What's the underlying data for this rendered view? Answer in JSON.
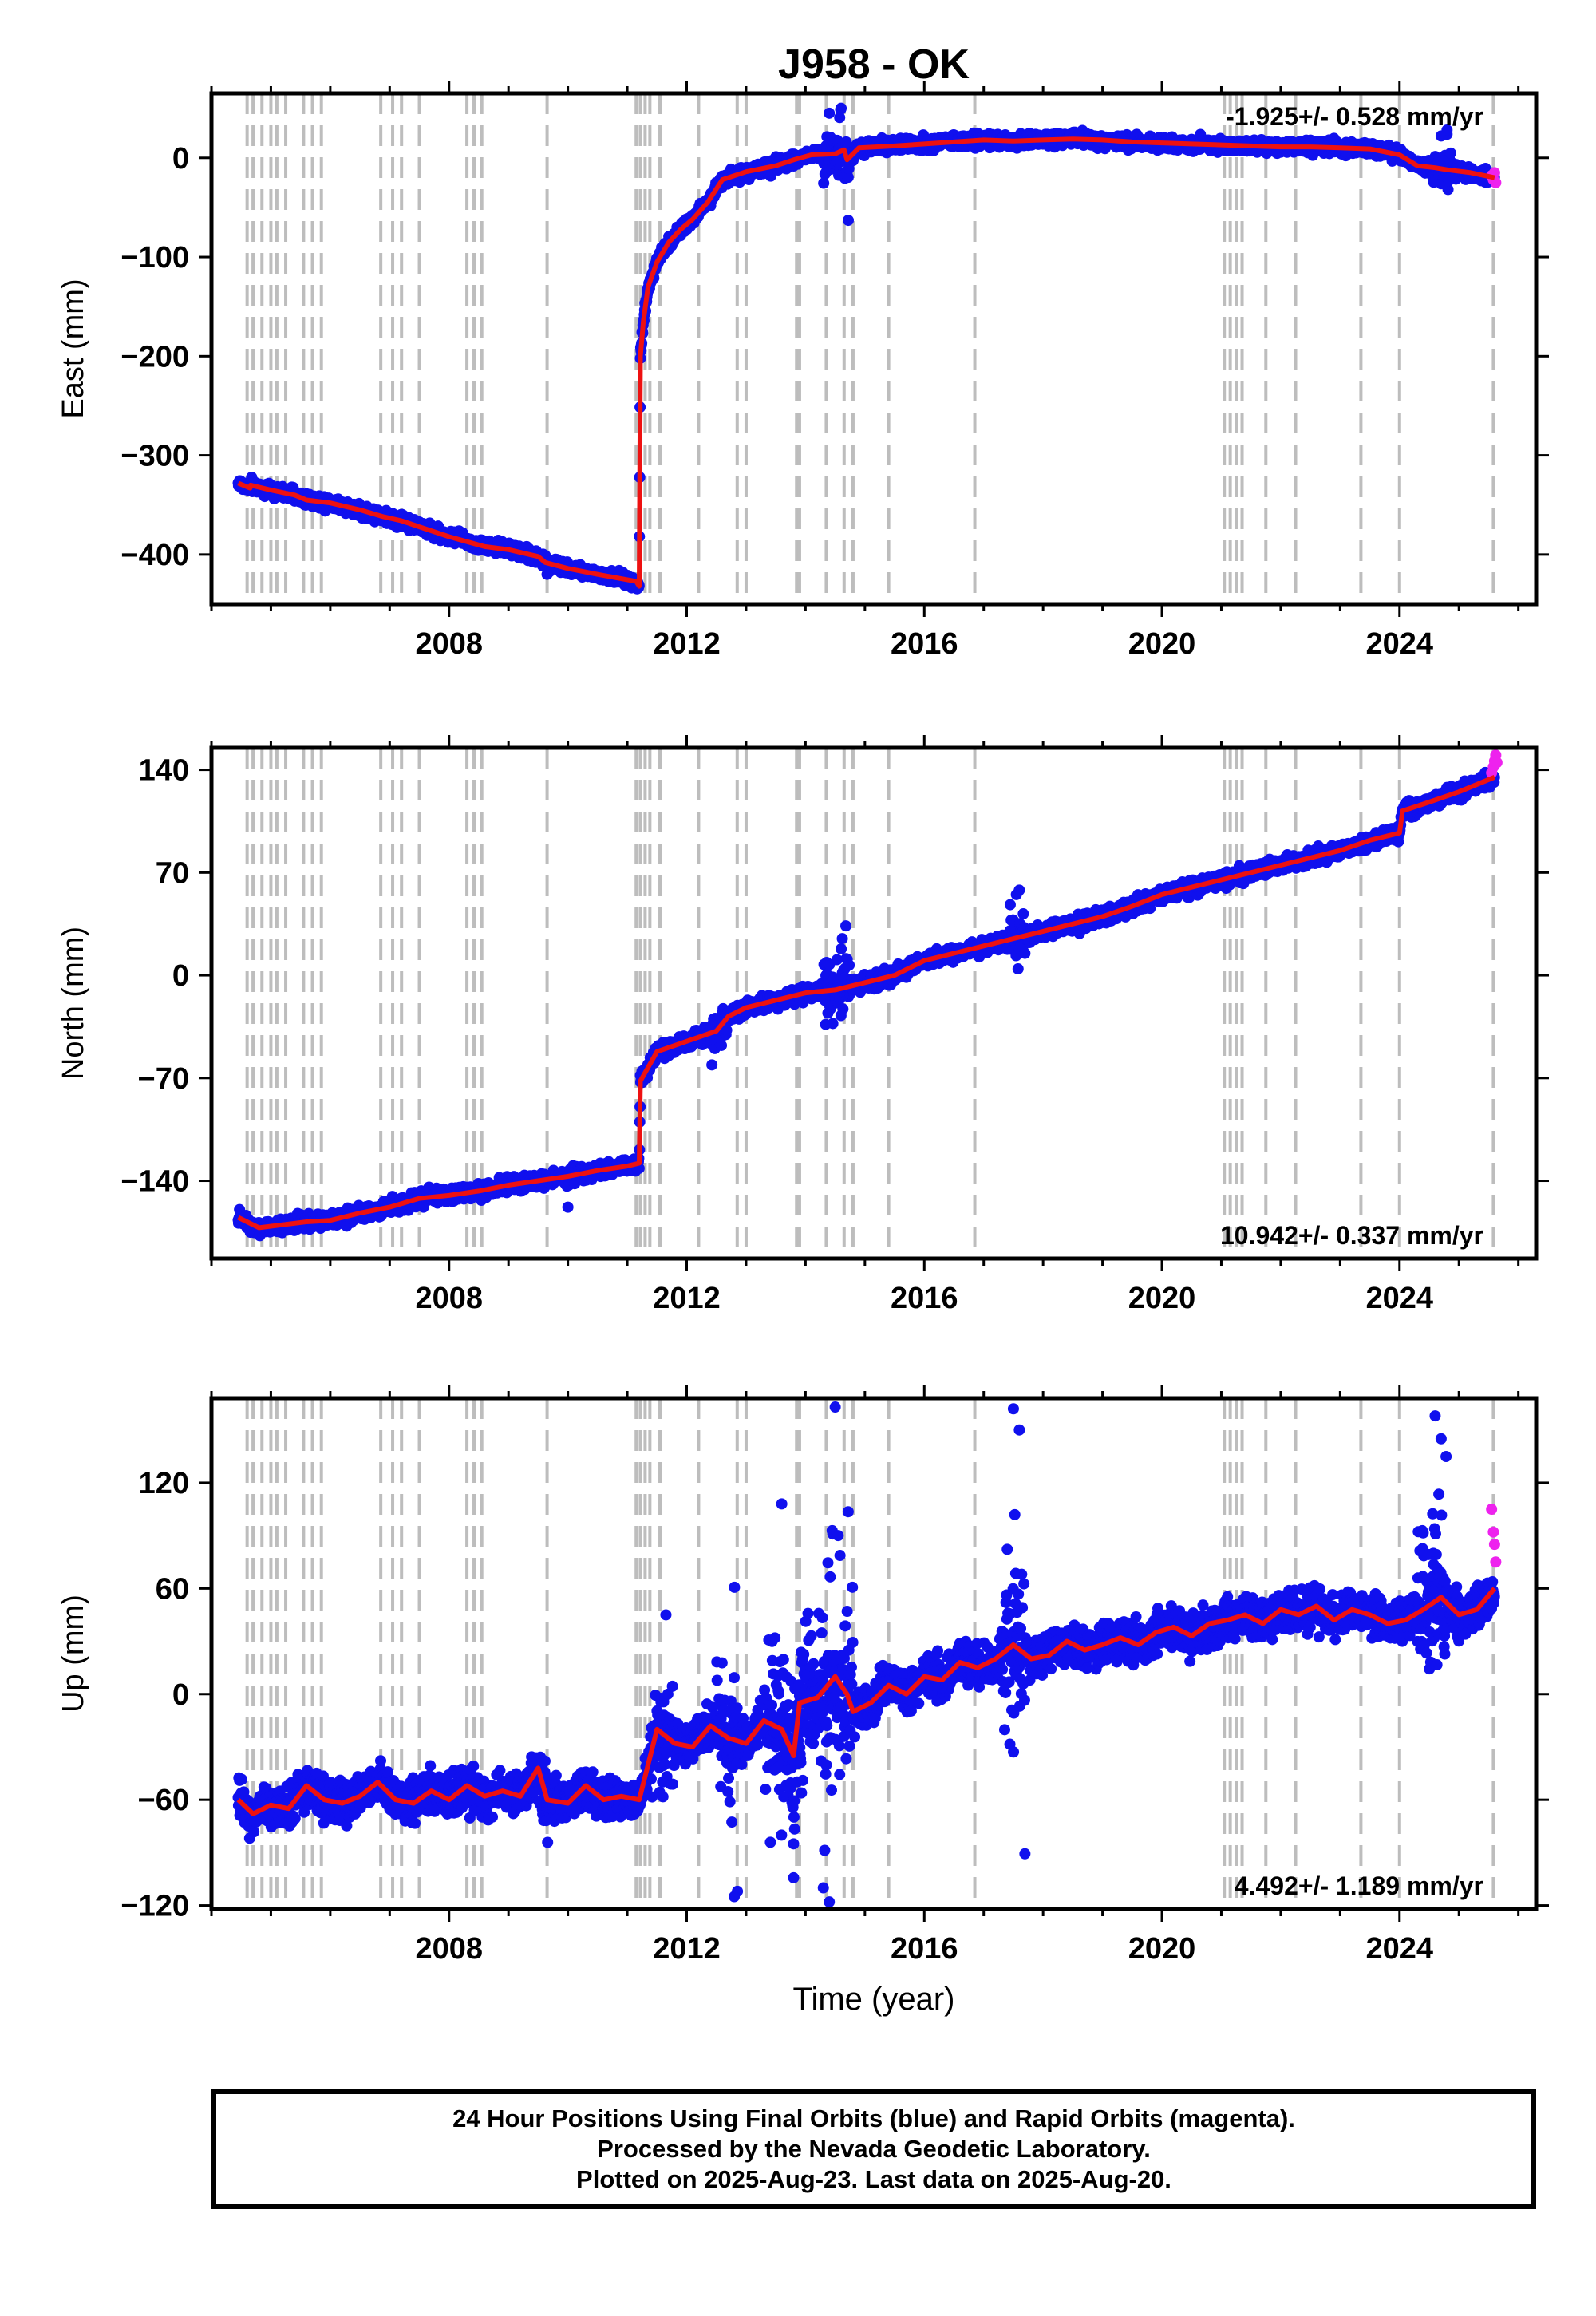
{
  "figure": {
    "title": "J958 - OK",
    "xlabel": "Time (year)",
    "footer": [
      "24 Hour Positions Using Final Orbits (blue) and Rapid Orbits (magenta).",
      "Processed by the Nevada Geodetic Laboratory.",
      "Plotted on 2025-Aug-23. Last data on 2025-Aug-20."
    ],
    "colors": {
      "final": "#1010ee",
      "rapid": "#ee22ee",
      "model": "#ee1111",
      "event": "#bdbdbd",
      "axis": "#000000"
    }
  },
  "chart_data": [
    {
      "type": "scatter",
      "name": "east",
      "ylabel": "East (mm)",
      "rate_text": "-1.925+/- 0.528 mm/yr",
      "rate_position": "top-right",
      "xlim": [
        2004.0,
        2026.3
      ],
      "ylim": [
        -450,
        65
      ],
      "xticks": [
        2008,
        2012,
        2016,
        2020,
        2024
      ],
      "yticks": [
        -400,
        -300,
        -200,
        -100,
        0
      ],
      "ytick_labels": [
        "−400",
        "−300",
        "−200",
        "−100",
        "0"
      ],
      "model": {
        "x": [
          2004.45,
          2004.65,
          2004.66,
          2005.0,
          2005.4,
          2005.6,
          2006.0,
          2006.5,
          2006.9,
          2007.2,
          2007.5,
          2008.0,
          2008.3,
          2008.6,
          2009.0,
          2009.5,
          2009.62,
          2010.0,
          2010.5,
          2011.15,
          2011.2,
          2011.22,
          2011.27,
          2011.35,
          2011.5,
          2011.7,
          2011.9,
          2012.1,
          2012.35,
          2012.6,
          2013.0,
          2013.5,
          2013.8,
          2014.1,
          2014.5,
          2014.65,
          2014.7,
          2014.9,
          2015.5,
          2016.0,
          2016.5,
          2017.0,
          2017.5,
          2018.0,
          2018.5,
          2019.0,
          2019.5,
          2020.0,
          2020.5,
          2021.0,
          2021.5,
          2022.0,
          2022.5,
          2023.0,
          2023.5,
          2024.0,
          2024.3,
          2024.6,
          2024.8,
          2025.2,
          2025.6
        ],
        "y": [
          -328,
          -333,
          -330,
          -335,
          -340,
          -345,
          -348,
          -355,
          -362,
          -366,
          -372,
          -382,
          -387,
          -392,
          -395,
          -402,
          -408,
          -414,
          -420,
          -427,
          -432,
          -200,
          -165,
          -130,
          -105,
          -85,
          -72,
          -62,
          -45,
          -22,
          -14,
          -8,
          -2,
          3,
          4,
          8,
          -2,
          10,
          12,
          14,
          16,
          18,
          17,
          18,
          19,
          18,
          16,
          15,
          14,
          13,
          12,
          11,
          11,
          10,
          9,
          3,
          -8,
          -10,
          -12,
          -15,
          -20
        ]
      },
      "final_extra": {
        "x": [
          2014.72,
          2014.6,
          2014.4,
          2024.7,
          2024.8,
          2009.65
        ],
        "y": [
          -63,
          50,
          45,
          22,
          28,
          -420
        ]
      },
      "rapid": {
        "x": [
          2025.55,
          2025.58,
          2025.6,
          2025.62
        ],
        "y": [
          -18,
          -22,
          -15,
          -25
        ]
      },
      "noise": 4.5,
      "spike_intervals": [
        [
          2014.3,
          2014.75,
          22
        ],
        [
          2024.55,
          2024.9,
          14
        ]
      ],
      "events": [
        2004.6,
        2004.7,
        2004.85,
        2005.0,
        2005.1,
        2005.25,
        2005.55,
        2005.7,
        2005.85,
        2006.85,
        2007.05,
        2007.2,
        2007.5,
        2008.3,
        2008.42,
        2008.55,
        2009.65,
        2011.15,
        2011.22,
        2011.3,
        2011.38,
        2011.55,
        2012.2,
        2012.85,
        2013.0,
        2013.85,
        2013.9,
        2014.35,
        2014.65,
        2014.8,
        2015.4,
        2016.85,
        2021.05,
        2021.15,
        2021.25,
        2021.35,
        2021.75,
        2022.25,
        2023.35,
        2024.0,
        2025.58
      ]
    },
    {
      "type": "scatter",
      "name": "north",
      "ylabel": "North (mm)",
      "rate_text": "10.942+/- 0.337 mm/yr",
      "rate_position": "bottom-right",
      "xlim": [
        2004.0,
        2026.3
      ],
      "ylim": [
        -193,
        155
      ],
      "xticks": [
        2008,
        2012,
        2016,
        2020,
        2024
      ],
      "yticks": [
        -140,
        -70,
        0,
        70,
        140
      ],
      "ytick_labels": [
        "−140",
        "−70",
        "0",
        "70",
        "140"
      ],
      "model": {
        "x": [
          2004.45,
          2004.8,
          2005.2,
          2005.6,
          2006.0,
          2006.5,
          2007.0,
          2007.5,
          2008.0,
          2008.5,
          2009.0,
          2009.5,
          2010.0,
          2010.5,
          2011.0,
          2011.2,
          2011.22,
          2011.5,
          2012.0,
          2012.5,
          2012.7,
          2013.0,
          2013.5,
          2014.0,
          2014.5,
          2015.0,
          2015.5,
          2016.0,
          2016.5,
          2017.0,
          2017.5,
          2018.0,
          2018.5,
          2019.0,
          2019.5,
          2020.0,
          2020.5,
          2021.0,
          2021.5,
          2022.0,
          2022.5,
          2023.0,
          2023.5,
          2024.0,
          2024.05,
          2024.5,
          2025.0,
          2025.6
        ],
        "y": [
          -165,
          -172,
          -170,
          -168,
          -167,
          -162,
          -158,
          -152,
          -150,
          -147,
          -143,
          -140,
          -137,
          -133,
          -130,
          -128,
          -72,
          -52,
          -45,
          -38,
          -28,
          -22,
          -17,
          -12,
          -10,
          -5,
          0,
          10,
          15,
          20,
          25,
          30,
          35,
          40,
          47,
          55,
          60,
          65,
          70,
          75,
          80,
          85,
          92,
          97,
          112,
          118,
          125,
          135
        ]
      },
      "final_extra": {
        "x": [
          2014.6,
          2014.62,
          2017.55,
          2017.6,
          2024.8,
          2010.0
        ],
        "y": [
          18,
          25,
          55,
          58,
          128,
          -158
        ]
      },
      "rapid": {
        "x": [
          2025.55,
          2025.58,
          2025.6,
          2025.62,
          2025.64
        ],
        "y": [
          138,
          142,
          146,
          150,
          145
        ]
      },
      "noise": 3.5,
      "spike_intervals": [
        [
          2014.3,
          2014.75,
          18
        ],
        [
          2012.4,
          2012.7,
          10
        ],
        [
          2017.4,
          2017.7,
          12
        ]
      ],
      "events": [
        2004.6,
        2004.7,
        2004.85,
        2005.0,
        2005.1,
        2005.25,
        2005.55,
        2005.7,
        2005.85,
        2006.85,
        2007.05,
        2007.2,
        2007.5,
        2008.3,
        2008.42,
        2008.55,
        2009.65,
        2011.15,
        2011.22,
        2011.3,
        2011.38,
        2011.55,
        2012.2,
        2012.85,
        2013.0,
        2013.85,
        2013.9,
        2014.35,
        2014.65,
        2014.8,
        2015.4,
        2016.85,
        2021.05,
        2021.15,
        2021.25,
        2021.35,
        2021.75,
        2022.25,
        2023.35,
        2024.0,
        2025.58
      ]
    },
    {
      "type": "scatter",
      "name": "up",
      "ylabel": "Up (mm)",
      "rate_text": "4.492+/- 1.189 mm/yr",
      "rate_position": "bottom-right",
      "xlim": [
        2004.0,
        2026.3
      ],
      "ylim": [
        -122,
        168
      ],
      "xticks": [
        2008,
        2012,
        2016,
        2020,
        2024
      ],
      "yticks": [
        -120,
        -60,
        0,
        60,
        120
      ],
      "ytick_labels": [
        "−120",
        "−60",
        "0",
        "60",
        "120"
      ],
      "model": {
        "x": [
          2004.45,
          2004.7,
          2005.0,
          2005.3,
          2005.6,
          2005.9,
          2006.2,
          2006.5,
          2006.8,
          2007.1,
          2007.4,
          2007.7,
          2008.0,
          2008.3,
          2008.6,
          2008.9,
          2009.2,
          2009.5,
          2009.65,
          2010.0,
          2010.3,
          2010.6,
          2010.9,
          2011.2,
          2011.5,
          2011.8,
          2012.1,
          2012.4,
          2012.7,
          2013.0,
          2013.3,
          2013.6,
          2013.8,
          2013.9,
          2014.2,
          2014.5,
          2014.7,
          2014.8,
          2015.1,
          2015.4,
          2015.7,
          2016.0,
          2016.3,
          2016.6,
          2016.9,
          2017.2,
          2017.5,
          2017.8,
          2018.1,
          2018.4,
          2018.7,
          2019.0,
          2019.3,
          2019.6,
          2019.9,
          2020.2,
          2020.5,
          2020.8,
          2021.1,
          2021.4,
          2021.7,
          2022.0,
          2022.3,
          2022.6,
          2022.9,
          2023.2,
          2023.5,
          2023.8,
          2024.1,
          2024.4,
          2024.7,
          2025.0,
          2025.3,
          2025.6
        ],
        "y": [
          -60,
          -68,
          -63,
          -65,
          -52,
          -60,
          -62,
          -58,
          -50,
          -60,
          -62,
          -55,
          -60,
          -52,
          -58,
          -55,
          -58,
          -42,
          -60,
          -62,
          -52,
          -60,
          -58,
          -60,
          -20,
          -28,
          -30,
          -18,
          -25,
          -28,
          -15,
          -20,
          -35,
          -5,
          -2,
          10,
          0,
          -10,
          -5,
          5,
          0,
          10,
          8,
          18,
          15,
          20,
          28,
          20,
          22,
          30,
          25,
          28,
          32,
          28,
          35,
          38,
          33,
          40,
          42,
          45,
          40,
          48,
          45,
          50,
          42,
          48,
          45,
          40,
          42,
          48,
          55,
          45,
          48,
          60
        ]
      },
      "final_extra": {
        "x": [
          2014.5,
          2013.6,
          2012.8,
          2017.5,
          2017.6,
          2024.6,
          2024.7,
          2014.4,
          2014.3,
          2014.55,
          2011.65,
          2013.8
        ],
        "y": [
          163,
          108,
          -115,
          162,
          150,
          158,
          145,
          -118,
          -110,
          90,
          45,
          -85
        ]
      },
      "rapid": {
        "x": [
          2025.55,
          2025.58,
          2025.6,
          2025.62
        ],
        "y": [
          105,
          92,
          85,
          75
        ]
      },
      "noise": 8,
      "spike_intervals": [
        [
          2011.4,
          2011.8,
          25
        ],
        [
          2012.5,
          2012.9,
          30
        ],
        [
          2013.3,
          2014.8,
          38
        ],
        [
          2017.3,
          2017.7,
          50
        ],
        [
          2024.3,
          2024.8,
          45
        ],
        [
          2009.5,
          2009.7,
          15
        ]
      ],
      "events": [
        2004.6,
        2004.7,
        2004.85,
        2005.0,
        2005.1,
        2005.25,
        2005.55,
        2005.7,
        2005.85,
        2006.85,
        2007.05,
        2007.2,
        2007.5,
        2008.3,
        2008.42,
        2008.55,
        2009.65,
        2011.15,
        2011.22,
        2011.3,
        2011.38,
        2011.55,
        2012.2,
        2012.85,
        2013.0,
        2013.85,
        2013.9,
        2014.35,
        2014.65,
        2014.8,
        2015.4,
        2016.85,
        2021.05,
        2021.15,
        2021.25,
        2021.35,
        2021.75,
        2022.25,
        2023.35,
        2024.0,
        2025.58
      ]
    }
  ]
}
